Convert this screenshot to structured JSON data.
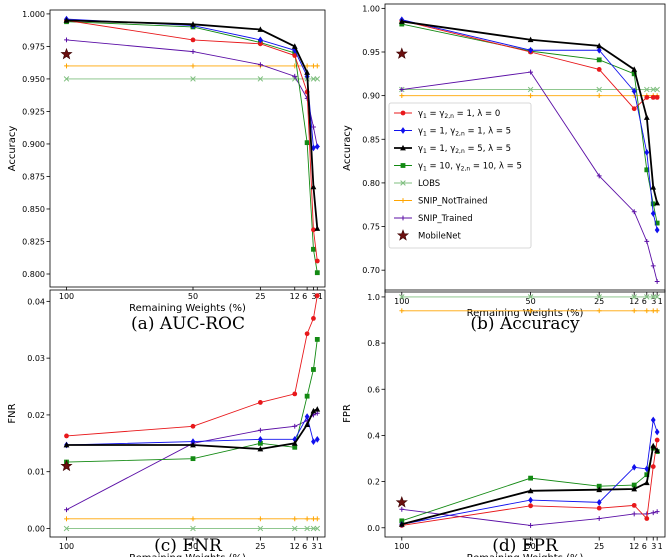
{
  "chart_data": [
    {
      "type": "line",
      "caption": "(a) AUC-ROC",
      "xlabel": "Remaining Weights (%)",
      "ylabel": "Accuracy",
      "xticks": [
        "100",
        "50",
        "25",
        "12",
        "6",
        "3",
        "1"
      ],
      "ylim": [
        0.79,
        1.003
      ],
      "yticks": [
        0.8,
        0.825,
        0.85,
        0.875,
        0.9,
        0.925,
        0.95,
        0.975,
        1.0
      ],
      "ytick_labels": [
        "0.800",
        "0.825",
        "0.850",
        "0.875",
        "0.900",
        "0.925",
        "0.950",
        "0.975",
        "1.000"
      ],
      "series": [
        {
          "key": "g0",
          "x": [
            100,
            50,
            25,
            12,
            6,
            3,
            1
          ],
          "values": [
            0.995,
            0.98,
            0.977,
            0.968,
            0.94,
            0.834,
            0.81
          ]
        },
        {
          "key": "g1_5",
          "x": [
            100,
            50,
            25,
            12,
            6,
            3,
            1
          ],
          "values": [
            0.996,
            0.991,
            0.98,
            0.972,
            0.952,
            0.897,
            0.898
          ]
        },
        {
          "key": "g1_5_5",
          "x": [
            100,
            50,
            25,
            12,
            6,
            3,
            1
          ],
          "values": [
            0.995,
            0.992,
            0.988,
            0.975,
            0.955,
            0.867,
            0.835
          ]
        },
        {
          "key": "g10",
          "x": [
            100,
            50,
            25,
            12,
            6,
            3,
            1
          ],
          "values": [
            0.994,
            0.99,
            0.978,
            0.97,
            0.901,
            0.819,
            0.801
          ]
        },
        {
          "key": "lobs",
          "x": [
            100,
            50,
            25,
            12,
            6,
            3,
            1
          ],
          "values": [
            0.95,
            0.95,
            0.95,
            0.95,
            0.95,
            0.95,
            0.95
          ]
        },
        {
          "key": "snip_nt",
          "x": [
            100,
            50,
            25,
            12,
            6,
            3,
            1
          ],
          "values": [
            0.96,
            0.96,
            0.96,
            0.96,
            0.96,
            0.96,
            0.96
          ]
        },
        {
          "key": "snip_t",
          "x": [
            100,
            50,
            25,
            12,
            6,
            3,
            1
          ],
          "values": [
            0.98,
            0.971,
            0.961,
            0.952,
            0.935,
            0.913,
            0.898
          ]
        },
        {
          "key": "mobilenet",
          "x": [
            100
          ],
          "values": [
            0.969
          ]
        }
      ]
    },
    {
      "type": "line",
      "caption": "(b) Accuracy",
      "xlabel": "Remaining Weights (%)",
      "ylabel": "Accuracy",
      "xticks": [
        "100",
        "50",
        "25",
        "12",
        "6",
        "3",
        "1"
      ],
      "ylim": [
        0.675,
        1.005
      ],
      "yticks": [
        0.7,
        0.75,
        0.8,
        0.85,
        0.9,
        0.95,
        1.0
      ],
      "ytick_labels": [
        "0.70",
        "0.75",
        "0.80",
        "0.85",
        "0.90",
        "0.95",
        "1.00"
      ],
      "series": [
        {
          "key": "g0",
          "x": [
            100,
            50,
            25,
            12,
            6,
            3,
            1
          ],
          "values": [
            0.986,
            0.95,
            0.93,
            0.885,
            0.898,
            0.898,
            0.898
          ]
        },
        {
          "key": "g1_5",
          "x": [
            100,
            50,
            25,
            12,
            6,
            3,
            1
          ],
          "values": [
            0.987,
            0.952,
            0.952,
            0.905,
            0.835,
            0.765,
            0.746
          ]
        },
        {
          "key": "g1_5_5",
          "x": [
            100,
            50,
            25,
            12,
            6,
            3,
            1
          ],
          "values": [
            0.985,
            0.964,
            0.957,
            0.93,
            0.875,
            0.795,
            0.777
          ]
        },
        {
          "key": "g10",
          "x": [
            100,
            50,
            25,
            12,
            6,
            3,
            1
          ],
          "values": [
            0.982,
            0.951,
            0.941,
            0.925,
            0.815,
            0.776,
            0.754
          ]
        },
        {
          "key": "lobs",
          "x": [
            100,
            50,
            25,
            12,
            6,
            3,
            1
          ],
          "values": [
            0.907,
            0.907,
            0.907,
            0.907,
            0.907,
            0.907,
            0.907
          ]
        },
        {
          "key": "snip_nt",
          "x": [
            100,
            50,
            25,
            12,
            6,
            3,
            1
          ],
          "values": [
            0.9,
            0.9,
            0.9,
            0.9,
            0.9,
            0.9,
            0.9
          ]
        },
        {
          "key": "snip_t",
          "x": [
            100,
            50,
            25,
            12,
            6,
            3,
            1
          ],
          "values": [
            0.907,
            0.927,
            0.808,
            0.767,
            0.733,
            0.705,
            0.687
          ]
        },
        {
          "key": "mobilenet",
          "x": [
            100
          ],
          "values": [
            0.948
          ]
        }
      ]
    },
    {
      "type": "line",
      "caption": "(c) FNR",
      "xlabel": "Remaining Weights (%)",
      "ylabel": "FNR",
      "xticks": [
        "100",
        "50",
        "25",
        "12",
        "6",
        "3",
        "1"
      ],
      "ylim": [
        -0.0015,
        0.042
      ],
      "yticks": [
        0.0,
        0.01,
        0.02,
        0.03,
        0.04
      ],
      "ytick_labels": [
        "0.00",
        "0.01",
        "0.02",
        "0.03",
        "0.04"
      ],
      "series": [
        {
          "key": "g0",
          "x": [
            100,
            50,
            25,
            12,
            6,
            3,
            1
          ],
          "values": [
            0.0163,
            0.018,
            0.0222,
            0.0237,
            0.0343,
            0.037,
            0.041
          ]
        },
        {
          "key": "g1_5",
          "x": [
            100,
            50,
            25,
            12,
            6,
            3,
            1
          ],
          "values": [
            0.0147,
            0.0153,
            0.0157,
            0.0157,
            0.0197,
            0.0153,
            0.0157
          ]
        },
        {
          "key": "g1_5_5",
          "x": [
            100,
            50,
            25,
            12,
            6,
            3,
            1
          ],
          "values": [
            0.0147,
            0.0147,
            0.014,
            0.015,
            0.0183,
            0.0207,
            0.021
          ]
        },
        {
          "key": "g10",
          "x": [
            100,
            50,
            25,
            12,
            6,
            3,
            1
          ],
          "values": [
            0.0117,
            0.0123,
            0.015,
            0.0143,
            0.0233,
            0.028,
            0.0333
          ]
        },
        {
          "key": "lobs",
          "x": [
            100,
            50,
            25,
            12,
            6,
            3,
            1
          ],
          "values": [
            0.0,
            0.0,
            0.0,
            0.0,
            0.0,
            0.0,
            0.0
          ]
        },
        {
          "key": "snip_nt",
          "x": [
            100,
            50,
            25,
            12,
            6,
            3,
            1
          ],
          "values": [
            0.0017,
            0.0017,
            0.0017,
            0.0017,
            0.0017,
            0.0017,
            0.0017
          ]
        },
        {
          "key": "snip_t",
          "x": [
            100,
            50,
            25,
            12,
            6,
            3,
            1
          ],
          "values": [
            0.0033,
            0.015,
            0.0173,
            0.018,
            0.019,
            0.02,
            0.0203
          ]
        },
        {
          "key": "mobilenet",
          "x": [
            100
          ],
          "values": [
            0.011
          ]
        }
      ]
    },
    {
      "type": "line",
      "caption": "(d) FPR",
      "xlabel": "Remaining Weights (%)",
      "ylabel": "FPR",
      "xticks": [
        "100",
        "50",
        "25",
        "12",
        "6",
        "3",
        "1"
      ],
      "ylim": [
        -0.04,
        1.03
      ],
      "yticks": [
        0.0,
        0.2,
        0.4,
        0.6,
        0.8,
        1.0
      ],
      "ytick_labels": [
        "0.0",
        "0.2",
        "0.4",
        "0.6",
        "0.8",
        "1.0"
      ],
      "series": [
        {
          "key": "g0",
          "x": [
            100,
            50,
            25,
            12,
            6,
            3,
            1
          ],
          "values": [
            0.01,
            0.095,
            0.085,
            0.097,
            0.04,
            0.265,
            0.38
          ]
        },
        {
          "key": "g1_5",
          "x": [
            100,
            50,
            25,
            12,
            6,
            3,
            1
          ],
          "values": [
            0.015,
            0.12,
            0.11,
            0.262,
            0.255,
            0.467,
            0.415
          ]
        },
        {
          "key": "g1_5_5",
          "x": [
            100,
            50,
            25,
            12,
            6,
            3,
            1
          ],
          "values": [
            0.015,
            0.16,
            0.165,
            0.168,
            0.195,
            0.355,
            0.335
          ]
        },
        {
          "key": "g10",
          "x": [
            100,
            50,
            25,
            12,
            6,
            3,
            1
          ],
          "values": [
            0.03,
            0.215,
            0.18,
            0.185,
            0.23,
            0.345,
            0.33
          ]
        },
        {
          "key": "lobs",
          "x": [
            100,
            50,
            25,
            12,
            6,
            3,
            1
          ],
          "values": [
            1.0,
            1.0,
            1.0,
            1.0,
            1.0,
            1.0,
            1.0
          ]
        },
        {
          "key": "snip_nt",
          "x": [
            100,
            50,
            25,
            12,
            6,
            3,
            1
          ],
          "values": [
            0.94,
            0.94,
            0.94,
            0.94,
            0.94,
            0.94,
            0.94
          ]
        },
        {
          "key": "snip_t",
          "x": [
            100,
            50,
            25,
            12,
            6,
            3,
            1
          ],
          "values": [
            0.08,
            0.01,
            0.04,
            0.06,
            0.06,
            0.065,
            0.07
          ]
        },
        {
          "key": "mobilenet",
          "x": [
            100
          ],
          "values": [
            0.11
          ]
        }
      ]
    }
  ],
  "legend": {
    "placement": "panel (b), bottom-left",
    "entries": [
      {
        "key": "g0",
        "parts": [
          "γ",
          "1",
          " = γ",
          "2,n",
          " = 1, λ = 0"
        ],
        "color": "#e8181b",
        "marker": "circle"
      },
      {
        "key": "g1_5",
        "parts": [
          "γ",
          "1",
          " = 1, γ",
          "2,n",
          " = 1, λ = 5"
        ],
        "color": "#1010ee",
        "marker": "diamond"
      },
      {
        "key": "g1_5_5",
        "parts": [
          "γ",
          "1",
          " = 1, γ",
          "2,n",
          " = 5, λ = 5"
        ],
        "color": "#000000",
        "marker": "triangle"
      },
      {
        "key": "g10",
        "parts": [
          "γ",
          "1",
          " = 10, γ",
          "2,n",
          " = 10, λ = 5"
        ],
        "color": "#138a13",
        "marker": "square"
      },
      {
        "key": "lobs",
        "parts": [
          "LOBS"
        ],
        "color": "#7fbf7f",
        "marker": "x"
      },
      {
        "key": "snip_nt",
        "parts": [
          "SNIP_NotTrained"
        ],
        "color": "#ffa500",
        "marker": "plus"
      },
      {
        "key": "snip_t",
        "parts": [
          "SNIP_Trained"
        ],
        "color": "#5b0fa6",
        "marker": "plus"
      },
      {
        "key": "mobilenet",
        "parts": [
          "MobileNet"
        ],
        "color": "#6b0f0f",
        "marker": "star"
      }
    ]
  },
  "series_styles": {
    "g0": {
      "color": "#e8181b",
      "marker": "circle"
    },
    "g1_5": {
      "color": "#1010ee",
      "marker": "diamond"
    },
    "g1_5_5": {
      "color": "#000000",
      "marker": "triangle"
    },
    "g10": {
      "color": "#138a13",
      "marker": "square"
    },
    "lobs": {
      "color": "#7fbf7f",
      "marker": "x"
    },
    "snip_nt": {
      "color": "#ffa500",
      "marker": "plus"
    },
    "snip_t": {
      "color": "#5b0fa6",
      "marker": "plus"
    },
    "mobilenet": {
      "color": "#6b0f0f",
      "marker": "star"
    }
  }
}
